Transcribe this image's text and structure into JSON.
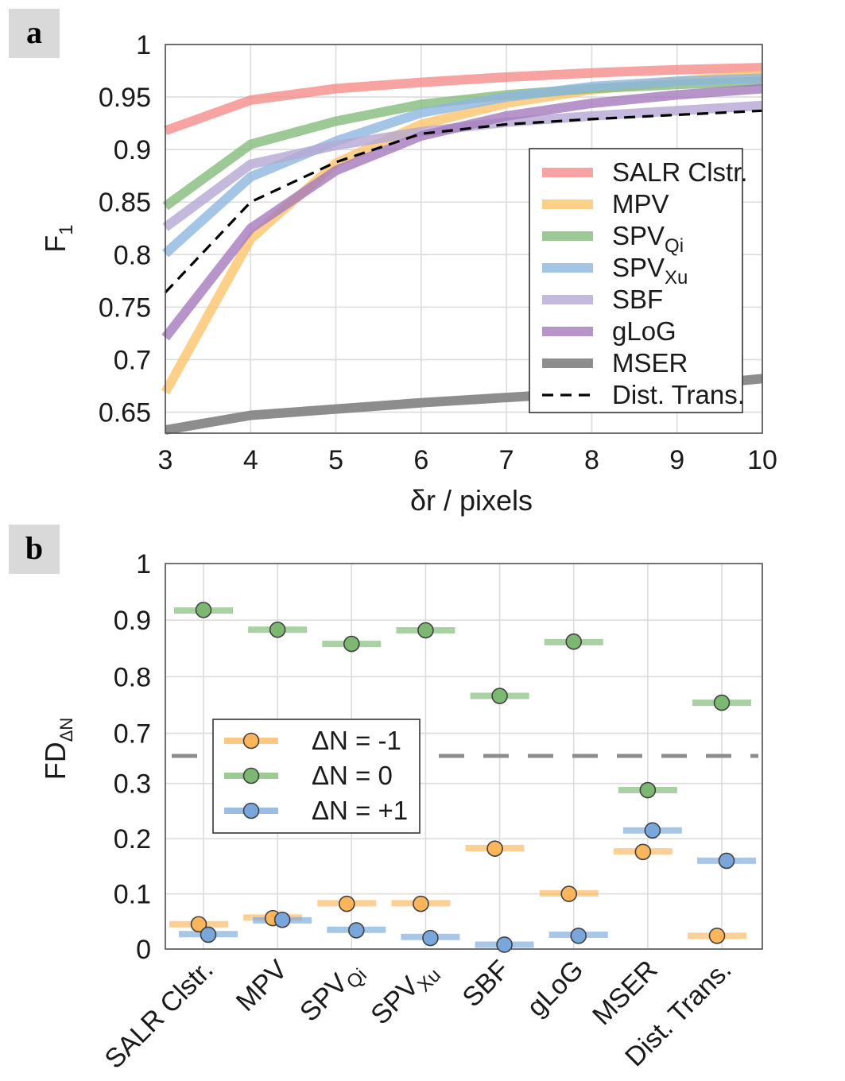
{
  "colors": {
    "salr": "#f48c89",
    "mpv": "#fcc46b",
    "spv_qi": "#84bc7c",
    "spv_xu": "#8fb7e1",
    "sbf": "#b5a8d5",
    "glog": "#a57bbd",
    "mser": "#878787",
    "dist": "#000000",
    "minus": "#fbb55a",
    "zero": "#7db872",
    "plus": "#7aa7db"
  },
  "chart_data": [
    {
      "panel": "a",
      "type": "line",
      "xlabel": "δr / pixels",
      "ylabel": "F",
      "ylabel_sub": "1",
      "xlim": [
        3,
        10
      ],
      "ylim": [
        0.63,
        1.0
      ],
      "x": [
        3,
        4,
        5,
        6,
        7,
        8,
        9,
        10
      ],
      "xtick_labels": [
        "3",
        "4",
        "5",
        "6",
        "7",
        "8",
        "9",
        "10"
      ],
      "yticks": [
        0.65,
        0.7,
        0.75,
        0.8,
        0.85,
        0.9,
        0.95,
        1.0
      ],
      "ytick_labels": [
        "0.65",
        "0.7",
        "0.75",
        "0.8",
        "0.85",
        "0.9",
        "0.95",
        "1"
      ],
      "legend_position": "center-right",
      "series": [
        {
          "key": "salr",
          "name": "SALR Clstr.",
          "name_sub": "",
          "values": [
            0.918,
            0.947,
            0.958,
            0.964,
            0.969,
            0.973,
            0.976,
            0.978
          ]
        },
        {
          "key": "mpv",
          "name": "MPV",
          "name_sub": "",
          "values": [
            0.669,
            0.815,
            0.887,
            0.924,
            0.944,
            0.957,
            0.965,
            0.971
          ]
        },
        {
          "key": "spv_qi",
          "name": "SPV",
          "name_sub": "Qi",
          "values": [
            0.846,
            0.905,
            0.927,
            0.943,
            0.952,
            0.958,
            0.962,
            0.965
          ]
        },
        {
          "key": "spv_xu",
          "name": "SPV",
          "name_sub": "Xu",
          "values": [
            0.801,
            0.874,
            0.908,
            0.935,
            0.95,
            0.96,
            0.965,
            0.968
          ]
        },
        {
          "key": "sbf",
          "name": "SBF",
          "name_sub": "",
          "values": [
            0.826,
            0.886,
            0.904,
            0.917,
            0.926,
            0.932,
            0.937,
            0.942
          ]
        },
        {
          "key": "glog",
          "name": "gLoG",
          "name_sub": "",
          "values": [
            0.721,
            0.825,
            0.88,
            0.913,
            0.932,
            0.944,
            0.952,
            0.958
          ]
        },
        {
          "key": "mser",
          "name": "MSER",
          "name_sub": "",
          "values": [
            0.633,
            0.647,
            0.653,
            0.659,
            0.664,
            0.669,
            0.674,
            0.682
          ]
        },
        {
          "key": "dist",
          "name": "Dist. Trans.",
          "name_sub": "",
          "dashed": true,
          "values": [
            0.764,
            0.85,
            0.888,
            0.915,
            0.924,
            0.929,
            0.933,
            0.937
          ]
        }
      ]
    },
    {
      "panel": "b",
      "type": "scatter",
      "ylabel": "FD",
      "ylabel_sub": "ΔN",
      "broken_axis": true,
      "upper_ylim": [
        0.66,
        1.0
      ],
      "lower_ylim": [
        0.0,
        0.35
      ],
      "upper_yticks": [
        0.7,
        0.8,
        0.9,
        1.0
      ],
      "upper_ytick_labels": [
        "0.7",
        "0.8",
        "0.9",
        "1"
      ],
      "lower_yticks": [
        0.0,
        0.1,
        0.2,
        0.3
      ],
      "lower_ytick_labels": [
        "0",
        "0.1",
        "0.2",
        "0.3"
      ],
      "categories": [
        {
          "name": "SALR Clstr.",
          "sub": ""
        },
        {
          "name": "MPV",
          "sub": ""
        },
        {
          "name": "SPV",
          "sub": "Qi"
        },
        {
          "name": "SPV",
          "sub": "Xu"
        },
        {
          "name": "SBF",
          "sub": ""
        },
        {
          "name": "gLoG",
          "sub": ""
        },
        {
          "name": "MSER",
          "sub": ""
        },
        {
          "name": "Dist. Trans.",
          "sub": ""
        }
      ],
      "legend_position": "center-left",
      "series": [
        {
          "key": "minus",
          "name": "ΔN = -1",
          "bar_values": [
            0.045,
            0.057,
            0.083,
            0.083,
            0.183,
            0.101,
            0.177,
            0.024
          ],
          "point_values": [
            0.045,
            0.056,
            0.082,
            0.082,
            0.182,
            0.1,
            0.176,
            0.024
          ]
        },
        {
          "key": "zero",
          "name": "ΔN = 0",
          "bar_values": [
            0.917,
            0.883,
            0.858,
            0.882,
            0.766,
            0.861,
            0.288,
            0.754
          ],
          "point_values": [
            0.918,
            0.883,
            0.858,
            0.882,
            0.766,
            0.862,
            0.288,
            0.754
          ]
        },
        {
          "key": "plus",
          "name": "ΔN = +1",
          "bar_values": [
            0.027,
            0.052,
            0.035,
            0.022,
            0.008,
            0.026,
            0.215,
            0.16
          ],
          "point_values": [
            0.026,
            0.053,
            0.034,
            0.02,
            0.008,
            0.024,
            0.215,
            0.16
          ]
        }
      ]
    }
  ],
  "panels": {
    "a_label": "a",
    "b_label": "b"
  }
}
